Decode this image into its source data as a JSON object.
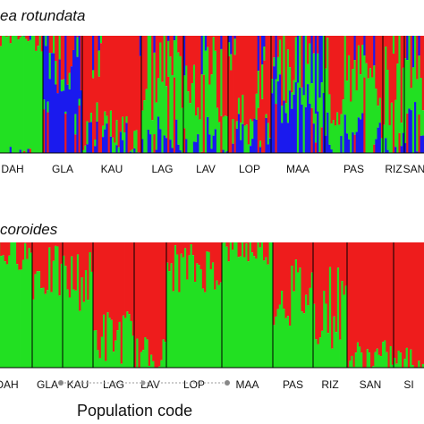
{
  "chart_data": [
    {
      "type": "bar",
      "stacked": true,
      "title": "ea rotundata",
      "xlabel": "",
      "ylim": [
        0,
        1
      ],
      "colors": {
        "red": "#ee1c1c",
        "green": "#22e022",
        "blue": "#1a1aee"
      },
      "populations": [
        {
          "code": "DAH",
          "green": 0.98,
          "red": 0.01,
          "blue": 0.01
        },
        {
          "code": "GLA",
          "green": 0.1,
          "red": 0.15,
          "blue": 0.75
        },
        {
          "code": "KAU",
          "green": 0.08,
          "red": 0.86,
          "blue": 0.06
        },
        {
          "code": "LAG",
          "green": 0.55,
          "red": 0.35,
          "blue": 0.1
        },
        {
          "code": "LAV",
          "green": 0.55,
          "red": 0.35,
          "blue": 0.1
        },
        {
          "code": "LOP",
          "green": 0.15,
          "red": 0.7,
          "blue": 0.15
        },
        {
          "code": "MAA",
          "green": 0.35,
          "red": 0.15,
          "blue": 0.5
        },
        {
          "code": "PAS",
          "green": 0.45,
          "red": 0.45,
          "blue": 0.1
        },
        {
          "code": "RIZ",
          "green": 0.5,
          "red": 0.4,
          "blue": 0.1
        },
        {
          "code": "SAN",
          "green": 0.45,
          "red": 0.3,
          "blue": 0.25
        }
      ]
    },
    {
      "type": "bar",
      "stacked": true,
      "title": "coroides",
      "xlabel": "Population code",
      "ylim": [
        0,
        1
      ],
      "colors": {
        "red": "#ee1c1c",
        "green": "#22e022"
      },
      "populations": [
        {
          "code": "DAH",
          "green": 0.92,
          "red": 0.08
        },
        {
          "code": "GLA",
          "green": 0.75,
          "red": 0.25
        },
        {
          "code": "KAU",
          "green": 0.7,
          "red": 0.3
        },
        {
          "code": "LAG",
          "green": 0.25,
          "red": 0.75
        },
        {
          "code": "LAV",
          "green": 0.1,
          "red": 0.9
        },
        {
          "code": "LOP",
          "green": 0.8,
          "red": 0.2
        },
        {
          "code": "MAA",
          "green": 0.95,
          "red": 0.05
        },
        {
          "code": "PAS",
          "green": 0.6,
          "red": 0.4
        },
        {
          "code": "RIZ",
          "green": 0.5,
          "red": 0.5
        },
        {
          "code": "SAN",
          "green": 0.08,
          "red": 0.92
        },
        {
          "code": "SI",
          "green": 0.05,
          "red": 0.95
        }
      ]
    }
  ]
}
